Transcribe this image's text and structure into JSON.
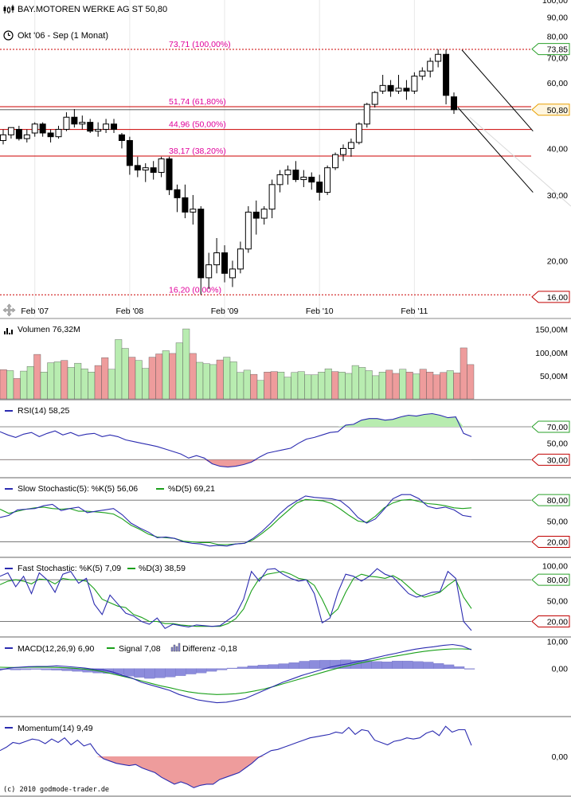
{
  "header": {
    "title": "BAY.MOTOREN WERKE AG ST 50,80",
    "period": "Okt '06 - Sep (1 Monat)"
  },
  "footer": "(c) 2010 godmode-trader.de",
  "colors": {
    "bull_candle": "#ffffff",
    "bear_candle": "#000000",
    "fib_line": "#cc0000",
    "fib_text": "#e0009a",
    "volume_up": "#b8ecb0",
    "volume_down": "#ee9c9c",
    "rsi_line": "#2b2bb0",
    "stoch_d": "#1aa01a",
    "macd_hist": "#8c8cdc",
    "label_green": "#2aa02a",
    "label_red": "#c00000",
    "label_orange": "#e8a000"
  },
  "chart_data": [
    {
      "type": "candlestick",
      "name": "price",
      "scale": "log",
      "ylim": [
        14,
        100
      ],
      "yticks": [
        "100,00",
        "90,00",
        "80,00",
        "70,00",
        "60,00",
        "40,00",
        "30,00",
        "20,00"
      ],
      "ytick_values": [
        100,
        90,
        80,
        70,
        60,
        40,
        30,
        20
      ],
      "xticks": [
        "Feb '07",
        "Feb '08",
        "Feb '09",
        "Feb '10",
        "Feb '11"
      ],
      "xtick_index": [
        4,
        16,
        28,
        40,
        52
      ],
      "price_labels": [
        {
          "text": "73,85",
          "value": 73.85,
          "style": "green"
        },
        {
          "text": "50,80",
          "value": 50.8,
          "style": "orange"
        },
        {
          "text": "16,00",
          "value": 16.0,
          "style": "red"
        }
      ],
      "fibonacci": [
        {
          "label": "73,71 (100,00%)",
          "value": 73.71
        },
        {
          "label": "51,74 (61,80%)",
          "value": 51.74
        },
        {
          "label": "44,96 (50,00%)",
          "value": 44.96
        },
        {
          "label": "38,17 (38,20%)",
          "value": 38.17
        },
        {
          "label": "16,20 (0,00%)",
          "value": 16.2
        }
      ],
      "channel_upper": {
        "from": [
          58,
          73.5
        ],
        "to": [
          67,
          44.5
        ]
      },
      "channel_lower": {
        "from": [
          57.5,
          51.5
        ],
        "to": [
          67,
          30.5
        ]
      },
      "candles": [
        {
          "o": 42,
          "h": 45,
          "l": 41,
          "c": 43.5
        },
        {
          "o": 43.5,
          "h": 45.5,
          "l": 42.5,
          "c": 45.5
        },
        {
          "o": 45,
          "h": 46,
          "l": 42,
          "c": 42.5
        },
        {
          "o": 42.5,
          "h": 45,
          "l": 41.5,
          "c": 43.5
        },
        {
          "o": 44,
          "h": 47,
          "l": 43,
          "c": 46.5
        },
        {
          "o": 46.5,
          "h": 47,
          "l": 43,
          "c": 44
        },
        {
          "o": 44,
          "h": 45,
          "l": 41.5,
          "c": 43
        },
        {
          "o": 43,
          "h": 46,
          "l": 42.5,
          "c": 45
        },
        {
          "o": 45,
          "h": 50,
          "l": 44.5,
          "c": 48.5
        },
        {
          "o": 48.5,
          "h": 51,
          "l": 45.5,
          "c": 46.5
        },
        {
          "o": 46.5,
          "h": 49,
          "l": 45,
          "c": 47
        },
        {
          "o": 47,
          "h": 48,
          "l": 44,
          "c": 44.5
        },
        {
          "o": 44.5,
          "h": 47,
          "l": 43,
          "c": 45
        },
        {
          "o": 45,
          "h": 48,
          "l": 44,
          "c": 46.5
        },
        {
          "o": 46.5,
          "h": 48,
          "l": 44,
          "c": 45
        },
        {
          "o": 43.5,
          "h": 44,
          "l": 40,
          "c": 42
        },
        {
          "o": 42,
          "h": 43,
          "l": 34,
          "c": 36
        },
        {
          "o": 36,
          "h": 38,
          "l": 33.5,
          "c": 35
        },
        {
          "o": 35,
          "h": 36.5,
          "l": 32.5,
          "c": 35.5
        },
        {
          "o": 35.5,
          "h": 37,
          "l": 33,
          "c": 34.5
        },
        {
          "o": 34.5,
          "h": 38,
          "l": 33.5,
          "c": 37.5
        },
        {
          "o": 37.5,
          "h": 38,
          "l": 30,
          "c": 31
        },
        {
          "o": 31,
          "h": 32,
          "l": 27,
          "c": 29.5
        },
        {
          "o": 29.5,
          "h": 32,
          "l": 26,
          "c": 27
        },
        {
          "o": 27,
          "h": 30,
          "l": 25,
          "c": 27.5
        },
        {
          "o": 27.5,
          "h": 28,
          "l": 16.2,
          "c": 18
        },
        {
          "o": 18,
          "h": 21,
          "l": 16.8,
          "c": 19.5
        },
        {
          "o": 19.5,
          "h": 23,
          "l": 18.5,
          "c": 21
        },
        {
          "o": 21,
          "h": 22,
          "l": 17.5,
          "c": 18.5
        },
        {
          "o": 18,
          "h": 20,
          "l": 17,
          "c": 19
        },
        {
          "o": 19,
          "h": 22.5,
          "l": 18.5,
          "c": 21.5
        },
        {
          "o": 21.5,
          "h": 28,
          "l": 21,
          "c": 27
        },
        {
          "o": 27,
          "h": 29,
          "l": 23.5,
          "c": 26
        },
        {
          "o": 26,
          "h": 28,
          "l": 25,
          "c": 27.5
        },
        {
          "o": 27.5,
          "h": 33,
          "l": 26,
          "c": 32
        },
        {
          "o": 32,
          "h": 35,
          "l": 30.5,
          "c": 34
        },
        {
          "o": 34,
          "h": 36,
          "l": 32,
          "c": 35
        },
        {
          "o": 35,
          "h": 37,
          "l": 32.5,
          "c": 33
        },
        {
          "o": 33,
          "h": 35,
          "l": 31.5,
          "c": 33.5
        },
        {
          "o": 33.5,
          "h": 34.5,
          "l": 31,
          "c": 32.5
        },
        {
          "o": 32.5,
          "h": 34,
          "l": 29,
          "c": 30.5
        },
        {
          "o": 30.5,
          "h": 36,
          "l": 30,
          "c": 35.5
        },
        {
          "o": 35.5,
          "h": 39,
          "l": 35,
          "c": 38.5
        },
        {
          "o": 38.5,
          "h": 41,
          "l": 37,
          "c": 40
        },
        {
          "o": 40,
          "h": 42.5,
          "l": 38,
          "c": 41.5
        },
        {
          "o": 41.5,
          "h": 47,
          "l": 41,
          "c": 46.5
        },
        {
          "o": 46.5,
          "h": 53,
          "l": 45.5,
          "c": 52.5
        },
        {
          "o": 52.5,
          "h": 57,
          "l": 51.5,
          "c": 56.5
        },
        {
          "o": 57,
          "h": 63,
          "l": 56,
          "c": 59
        },
        {
          "o": 59,
          "h": 61,
          "l": 55,
          "c": 57
        },
        {
          "o": 57,
          "h": 63,
          "l": 56,
          "c": 58
        },
        {
          "o": 58,
          "h": 61,
          "l": 54,
          "c": 57
        },
        {
          "o": 57,
          "h": 64,
          "l": 56,
          "c": 62.5
        },
        {
          "o": 62.5,
          "h": 66,
          "l": 61,
          "c": 64.5
        },
        {
          "o": 64.5,
          "h": 70,
          "l": 62,
          "c": 68.5
        },
        {
          "o": 68.5,
          "h": 73.71,
          "l": 66,
          "c": 71.5
        },
        {
          "o": 71.5,
          "h": 73.71,
          "l": 52.5,
          "c": 55.5
        },
        {
          "o": 55,
          "h": 56.5,
          "l": 49.5,
          "c": 50.8
        }
      ]
    },
    {
      "type": "bar",
      "name": "Volumen",
      "label": "Volumen 76,32M",
      "yticks": [
        "150,00M",
        "100,00M",
        "50,00M"
      ],
      "ytick_values": [
        150,
        100,
        50
      ],
      "ylim": [
        0,
        170
      ],
      "values": [
        63,
        61,
        44,
        60,
        70,
        96,
        58,
        78,
        80,
        83,
        68,
        77,
        65,
        58,
        72,
        89,
        64,
        128,
        109,
        90,
        83,
        66,
        90,
        97,
        104,
        98,
        121,
        151,
        98,
        79,
        76,
        74,
        84,
        90,
        80,
        57,
        62,
        53,
        40,
        58,
        59,
        58,
        47,
        57,
        59,
        52,
        52,
        58,
        65,
        59,
        58,
        55,
        72,
        68,
        61,
        50,
        58,
        62,
        55,
        64,
        58,
        54,
        64,
        58,
        52,
        57,
        61,
        56,
        110,
        74
      ]
    },
    {
      "type": "line",
      "name": "RSI(14)",
      "label": "RSI(14) 58,25",
      "yticks": [
        "70,00",
        "50,00",
        "30,00"
      ],
      "ytick_values": [
        70,
        50,
        30
      ],
      "ylim": [
        10,
        100
      ],
      "levels": [
        70,
        30
      ],
      "values": [
        64,
        60,
        57,
        61,
        63,
        58,
        62,
        65,
        60,
        63,
        59,
        61,
        62,
        58,
        60,
        58,
        54,
        52,
        50,
        48,
        46,
        43,
        40,
        37,
        32,
        35,
        32,
        25,
        22,
        21,
        22,
        24,
        27,
        33,
        38,
        40,
        42,
        44,
        50,
        55,
        57,
        60,
        63,
        64,
        72,
        73,
        78,
        80,
        80,
        78,
        79,
        82,
        84,
        83,
        85,
        86,
        84,
        81,
        82,
        62,
        58
      ]
    },
    {
      "type": "line",
      "name": "Slow Stochastic(5)",
      "label": "Slow Stochastic(5): %K(5) 56,06",
      "label2": "%D(5) 69,21",
      "yticks": [
        "80,00",
        "50,00",
        "20,00"
      ],
      "ytick_values": [
        80,
        50,
        20
      ],
      "ylim": [
        0,
        110
      ],
      "levels": [
        80,
        20
      ],
      "k": [
        55,
        58,
        66,
        67,
        68,
        72,
        74,
        65,
        68,
        70,
        62,
        64,
        66,
        68,
        59,
        47,
        40,
        34,
        26,
        27,
        25,
        20,
        18,
        17,
        14,
        15,
        14,
        17,
        18,
        25,
        35,
        47,
        60,
        71,
        79,
        86,
        84,
        83,
        82,
        79,
        69,
        55,
        47,
        53,
        67,
        82,
        88,
        88,
        82,
        71,
        68,
        70,
        66,
        58,
        56
      ],
      "d": [
        67,
        61,
        64,
        67,
        69,
        70,
        68,
        67,
        68,
        64,
        64,
        63,
        62,
        60,
        53,
        44,
        38,
        31,
        27,
        26,
        25,
        21,
        20,
        19,
        19,
        16,
        16,
        17,
        18,
        23,
        32,
        42,
        54,
        65,
        76,
        81,
        80,
        79,
        75,
        67,
        58,
        50,
        48,
        57,
        69,
        76,
        80,
        81,
        78,
        75,
        74,
        72,
        69,
        68,
        69
      ]
    },
    {
      "type": "line",
      "name": "Fast Stochastic",
      "label": "Fast Stochastic: %K(5) 7,09",
      "label2": "%D(3) 38,59",
      "yticks": [
        "100,00",
        "80,00",
        "50,00",
        "20,00"
      ],
      "ytick_values": [
        100,
        80,
        50,
        20
      ],
      "ylim": [
        0,
        110
      ],
      "levels": [
        80,
        20
      ],
      "k": [
        85,
        90,
        70,
        85,
        60,
        90,
        80,
        62,
        88,
        92,
        75,
        82,
        45,
        30,
        58,
        45,
        32,
        28,
        20,
        16,
        25,
        10,
        16,
        14,
        12,
        15,
        14,
        13,
        14,
        22,
        30,
        52,
        92,
        78,
        95,
        96,
        88,
        82,
        78,
        80,
        60,
        18,
        25,
        62,
        88,
        85,
        78,
        85,
        96,
        88,
        84,
        72,
        60,
        55,
        58,
        62,
        63,
        92,
        82,
        20,
        7
      ],
      "d": [
        73,
        78,
        80,
        78,
        74,
        81,
        80,
        74,
        82,
        80,
        80,
        78,
        67,
        52,
        47,
        42,
        40,
        30,
        26,
        20,
        20,
        17,
        17,
        15,
        14,
        13,
        13,
        13,
        13,
        17,
        24,
        38,
        64,
        82,
        88,
        90,
        92,
        88,
        82,
        80,
        72,
        52,
        28,
        38,
        62,
        82,
        88,
        85,
        84,
        82,
        86,
        80,
        70,
        60,
        55,
        58,
        62,
        72,
        80,
        55,
        38.6
      ]
    },
    {
      "type": "line",
      "name": "MACD(12,26,9)",
      "label": "MACD(12,26,9) 6,90",
      "label2": "Signal 7,08",
      "label3": "Differenz -0,18",
      "yticks": [
        "10,00",
        "0,00"
      ],
      "ytick_values": [
        10,
        0
      ],
      "ylim": [
        -17,
        11
      ],
      "macd": [
        -0.5,
        0.2,
        0.5,
        0.7,
        0.8,
        0.8,
        1,
        0.8,
        0.5,
        0.2,
        -0.3,
        -0.5,
        -1.3,
        -2.5,
        -3.5,
        -5,
        -6,
        -7,
        -8,
        -9.5,
        -10.5,
        -11.5,
        -12,
        -12.5,
        -12.3,
        -11.7,
        -11,
        -9.5,
        -8,
        -6.5,
        -5,
        -3.8,
        -2.5,
        -1.5,
        -0.5,
        0.5,
        1.2,
        1.8,
        2.6,
        3.3,
        4.1,
        4.9,
        5.6,
        6.4,
        7.1,
        7.6,
        8,
        8.5,
        8.8,
        8.3,
        6.9
      ],
      "signal": [
        0.5,
        0.4,
        0.4,
        0.5,
        0.5,
        0.5,
        0.4,
        0.3,
        0.1,
        -0.2,
        -0.6,
        -1.2,
        -2,
        -2.8,
        -3.6,
        -4.5,
        -5.4,
        -6.3,
        -7,
        -7.8,
        -8.5,
        -9,
        -9.3,
        -9.5,
        -9.4,
        -9.2,
        -8.8,
        -8.2,
        -7.5,
        -6.6,
        -5.6,
        -4.6,
        -3.6,
        -2.6,
        -1.6,
        -0.6,
        0.3,
        1.1,
        1.9,
        2.6,
        3.3,
        4,
        4.6,
        5.2,
        5.8,
        6.3,
        6.7,
        7,
        7.2,
        7.2,
        7.1
      ],
      "hist": [
        -0.3,
        -0.5,
        -0.4,
        -0.3,
        -0.5,
        -0.6,
        -0.8,
        -1,
        -1.3,
        -1.6,
        -1.8,
        -2.2,
        -2.8,
        -3.2,
        -3.6,
        -3.4,
        -3.1,
        -2.6,
        -2,
        -1.6,
        -1,
        -0.5,
        0.2,
        0.6,
        1,
        1.3,
        1.5,
        1.8,
        2.2,
        2.7,
        3,
        3.1,
        3.1,
        3.2,
        3,
        3,
        2.6,
        2.5,
        2.8,
        2.8,
        2.6,
        2.4,
        1.9,
        1.4,
        0.7,
        -0.2
      ]
    },
    {
      "type": "line",
      "name": "Momentum(14)",
      "label": "Momentum(14) 9,49",
      "yticks": [
        "0,00"
      ],
      "ytick_values": [
        0
      ],
      "ylim": [
        -33,
        33
      ],
      "values": [
        5,
        8,
        12,
        11,
        13,
        15,
        14,
        11,
        15,
        12,
        16,
        10,
        14,
        9,
        11,
        3,
        -2,
        -4,
        -6,
        -7,
        -8,
        -7,
        -10,
        -12,
        -14,
        -18,
        -21,
        -24,
        -22,
        -24,
        -27,
        -25,
        -24,
        -24,
        -20,
        -18,
        -16,
        -14,
        -10,
        -6,
        -1,
        2,
        5,
        6,
        8,
        10,
        12,
        14,
        16,
        17,
        18,
        19,
        21,
        20,
        25,
        19,
        23,
        22,
        14,
        12,
        10,
        13,
        14,
        16,
        15,
        16,
        20,
        22,
        18,
        26,
        21,
        23,
        23,
        9.5
      ]
    }
  ]
}
